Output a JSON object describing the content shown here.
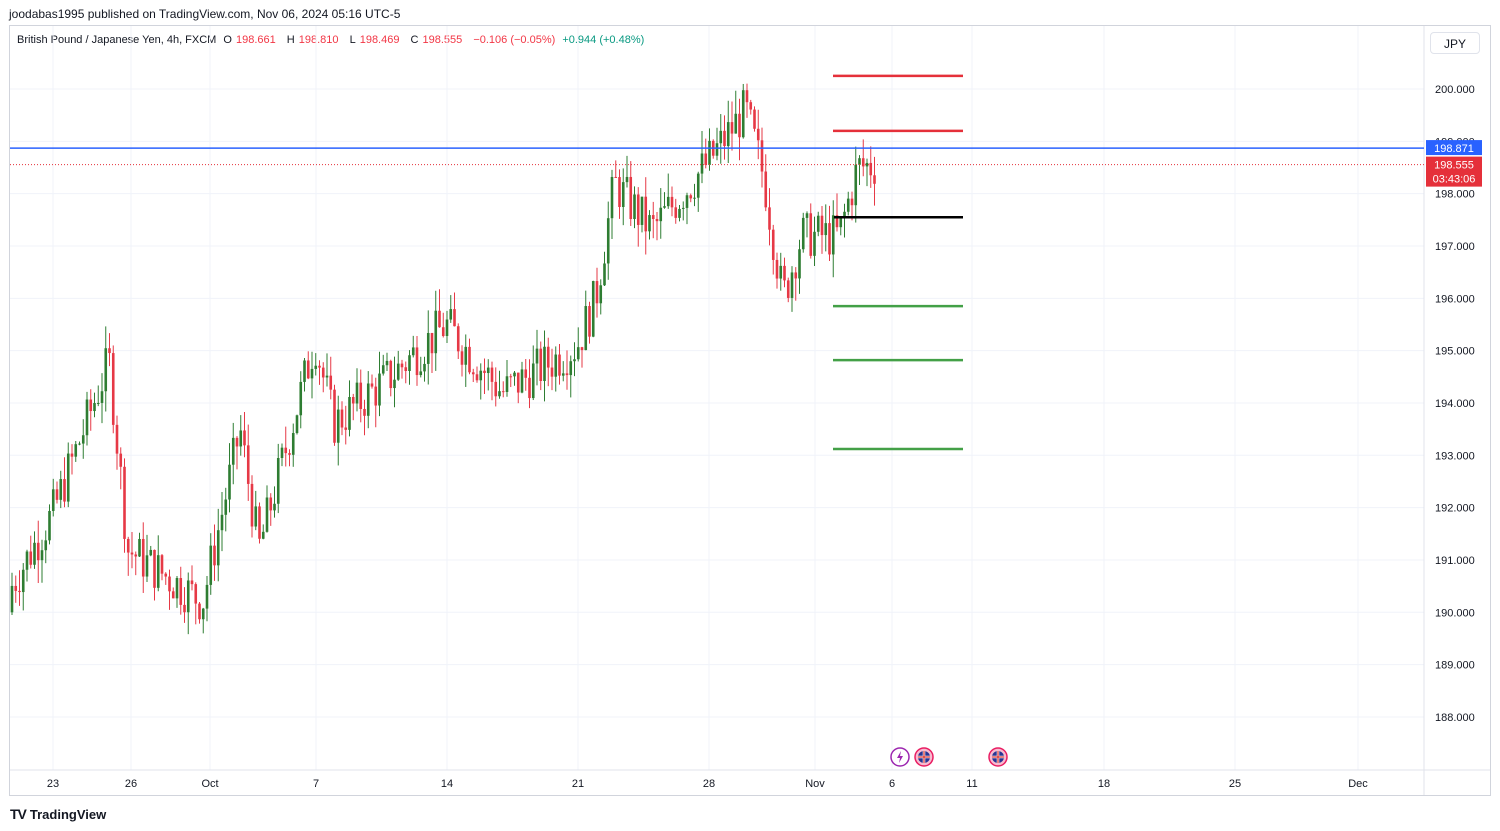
{
  "header": {
    "publisher": "joodabas1995 published on TradingView.com, Nov 06, 2024 05:16 UTC-5"
  },
  "legend": {
    "symbol": "British Pound / Japanese Yen, 4h, FXCM",
    "o_label": "O",
    "o": "198.661",
    "h_label": "H",
    "h": "198.810",
    "l_label": "L",
    "l": "198.469",
    "c_label": "C",
    "c": "198.555",
    "change": "−0.106 (−0.05%)",
    "change2": "+0.944 (+0.48%)"
  },
  "currency_button": "JPY",
  "footer": {
    "brand": "TradingView",
    "logo": "TV"
  },
  "colors": {
    "up": "#089981",
    "down": "#f23645",
    "candle_up": "#2e7d32",
    "candle_down": "#e63946",
    "blue_line": "#2962ff",
    "red_level": "#e5303a",
    "green_level": "#43a047",
    "black_level": "#000000"
  },
  "chart_data": {
    "type": "candlestick",
    "title": "British Pound / Japanese Yen, 4h, FXCM",
    "ylim": [
      187.4,
      201.2
    ],
    "y_ticks": [
      "200.000",
      "199.000",
      "198.000",
      "197.000",
      "196.000",
      "195.000",
      "194.000",
      "193.000",
      "192.000",
      "191.000",
      "190.000",
      "189.000",
      "188.000"
    ],
    "x_ticks": [
      "23",
      "26",
      "Oct",
      "7",
      "14",
      "21",
      "28",
      "Nov",
      "6",
      "11",
      "18",
      "25",
      "Dec"
    ],
    "price_labels": {
      "blue_line": "198.871",
      "current": "198.555",
      "countdown": "03:43:06"
    },
    "horizontal_lines": [
      {
        "name": "resistance-line",
        "value": 198.871,
        "color": "blue"
      },
      {
        "name": "current-price-line",
        "value": 198.555,
        "color": "red-dotted"
      }
    ],
    "levels": [
      {
        "name": "target-3",
        "value": 200.25,
        "color": "red"
      },
      {
        "name": "target-2",
        "value": 199.2,
        "color": "red"
      },
      {
        "name": "entry",
        "value": 197.55,
        "color": "black"
      },
      {
        "name": "stop-1",
        "value": 195.85,
        "color": "green"
      },
      {
        "name": "stop-2",
        "value": 194.82,
        "color": "green"
      },
      {
        "name": "stop-3",
        "value": 193.12,
        "color": "green"
      }
    ],
    "anchors": [
      {
        "date": "Sep 20",
        "price": 190.0
      },
      {
        "date": "Sep 23",
        "price": 191.9
      },
      {
        "date": "Sep 26",
        "price": 194.8
      },
      {
        "date": "Sep 27",
        "price": 191.2
      },
      {
        "date": "Oct 1",
        "price": 190.2
      },
      {
        "date": "Oct 3",
        "price": 193.5
      },
      {
        "date": "Oct 4",
        "price": 191.2
      },
      {
        "date": "Oct 7",
        "price": 195.2
      },
      {
        "date": "Oct 8",
        "price": 193.6
      },
      {
        "date": "Oct 11",
        "price": 194.5
      },
      {
        "date": "Oct 14",
        "price": 195.5
      },
      {
        "date": "Oct 17",
        "price": 194.2
      },
      {
        "date": "Oct 21",
        "price": 195.1
      },
      {
        "date": "Oct 22",
        "price": 196.0
      },
      {
        "date": "Oct 23",
        "price": 198.2
      },
      {
        "date": "Oct 25",
        "price": 197.3
      },
      {
        "date": "Oct 28",
        "price": 198.6
      },
      {
        "date": "Oct 30",
        "price": 199.6
      },
      {
        "date": "Oct 31",
        "price": 198.3
      },
      {
        "date": "Nov 1",
        "price": 196.0
      },
      {
        "date": "Nov 2",
        "price": 197.2
      },
      {
        "date": "Nov 4",
        "price": 197.2
      },
      {
        "date": "Nov 5",
        "price": 198.5
      },
      {
        "date": "Nov 6",
        "price": 198.555
      }
    ]
  }
}
